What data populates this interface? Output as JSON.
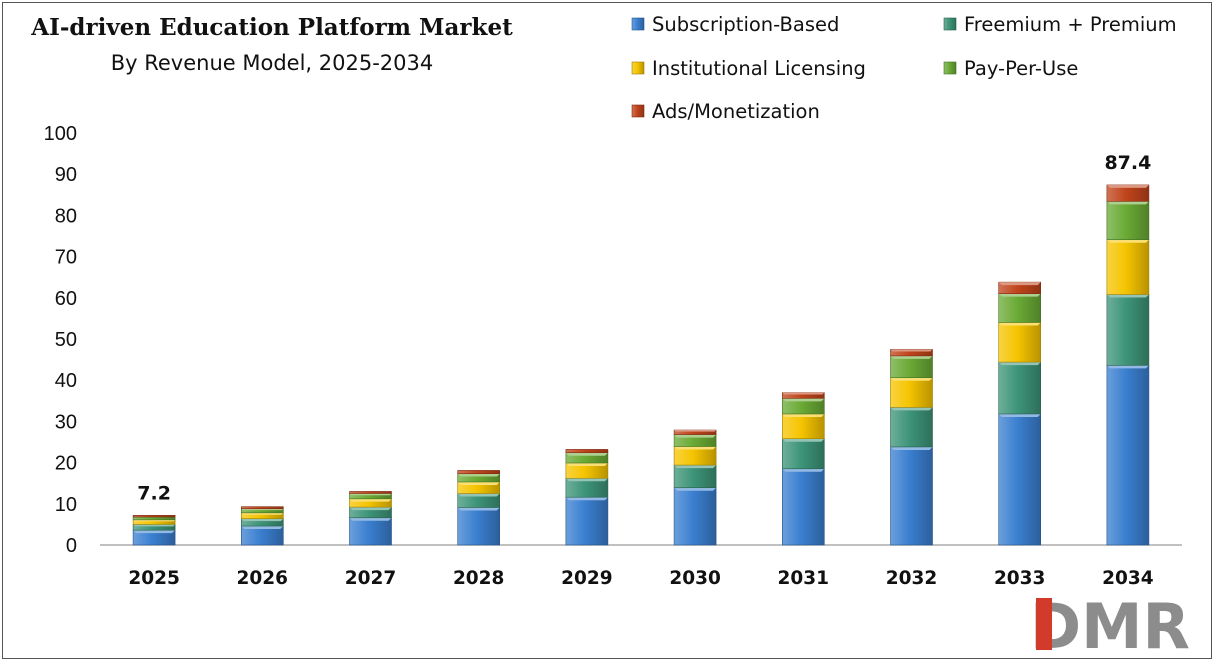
{
  "chart_data": {
    "type": "bar",
    "stacked": true,
    "title": "AI-driven Education Platform Market",
    "subtitle": "By Revenue Model, 2025-2034",
    "xlabel": "",
    "ylabel": "",
    "ylim": [
      0,
      100
    ],
    "yticks": [
      "0",
      "10",
      "20",
      "30",
      "40",
      "50",
      "60",
      "70",
      "80",
      "90",
      "100"
    ],
    "categories": [
      "2025",
      "2026",
      "2027",
      "2028",
      "2029",
      "2030",
      "2031",
      "2032",
      "2033",
      "2034"
    ],
    "legend_position": "top-right",
    "series": [
      {
        "name": "Subscription-Based",
        "color": "#3a7fd0",
        "values": [
          3.6,
          4.6,
          6.6,
          9.1,
          11.6,
          13.9,
          18.5,
          23.8,
          31.8,
          43.6
        ]
      },
      {
        "name": "Freemium + Premium",
        "color": "#3d9478",
        "values": [
          1.4,
          1.8,
          2.6,
          3.4,
          4.6,
          5.5,
          7.3,
          9.6,
          12.6,
          17.2
        ]
      },
      {
        "name": "Institutional Licensing",
        "color": "#f5c400",
        "values": [
          1.1,
          1.4,
          2.0,
          2.8,
          3.7,
          4.5,
          6.0,
          7.2,
          9.6,
          13.3
        ]
      },
      {
        "name": "Pay-Per-Use",
        "color": "#6aaa35",
        "values": [
          0.7,
          1.0,
          1.3,
          2.0,
          2.5,
          2.9,
          3.8,
          5.3,
          7.0,
          9.3
        ]
      },
      {
        "name": "Ads/Monetization",
        "color": "#c0441c",
        "values": [
          0.4,
          0.5,
          0.5,
          0.8,
          0.8,
          1.1,
          1.4,
          1.6,
          2.8,
          4.0
        ]
      }
    ],
    "annotations": [
      {
        "category": "2025",
        "text": "7.2"
      },
      {
        "category": "2034",
        "text": "87.4"
      }
    ]
  },
  "logo": {
    "text": "DMR",
    "name": "DMR logo"
  }
}
